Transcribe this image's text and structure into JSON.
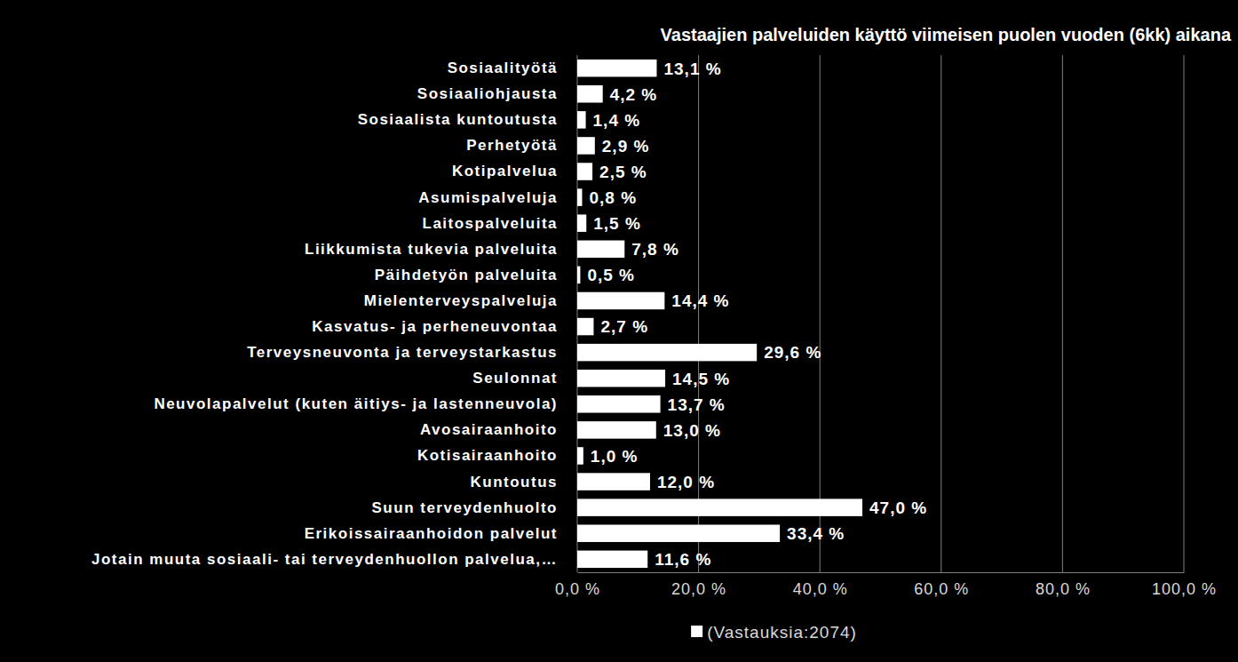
{
  "chart_data": {
    "type": "bar",
    "orientation": "horizontal",
    "title": "Vastaajien palveluiden käyttö viimeisen puolen vuoden (6kk) aikana",
    "categories": [
      "Sosiaalityötä",
      "Sosiaaliohjausta",
      "Sosiaalista kuntoutusta",
      "Perhetyötä",
      "Kotipalvelua",
      "Asumispalveluja",
      "Laitospalveluita",
      "Liikkumista tukevia palveluita",
      "Päihdetyön palveluita",
      "Mielenterveyspalveluja",
      "Kasvatus- ja perheneuvontaa",
      "Terveysneuvonta ja terveystarkastus",
      "Seulonnat",
      "Neuvolapalvelut (kuten äitiys- ja lastenneuvola)",
      "Avosairaanhoito",
      "Kotisairaanhoito",
      "Kuntoutus",
      "Suun terveydenhuolto",
      "Erikoissairaanhoidon palvelut",
      "Jotain muuta sosiaali- tai terveydenhuollon palvelua,…"
    ],
    "series": [
      {
        "name": "(Vastauksia:2074)",
        "color": "#ffffff",
        "values": [
          13.1,
          4.2,
          1.4,
          2.9,
          2.5,
          0.8,
          1.5,
          7.8,
          0.5,
          14.4,
          2.7,
          29.6,
          14.5,
          13.7,
          13.0,
          1.0,
          12.0,
          47.0,
          33.4,
          11.6
        ],
        "value_labels": [
          "13,1 %",
          "4,2 %",
          "1,4 %",
          "2,9 %",
          "2,5 %",
          "0,8 %",
          "1,5 %",
          "7,8 %",
          "0,5 %",
          "14,4 %",
          "2,7 %",
          "29,6 %",
          "14,5 %",
          "13,7 %",
          "13,0 %",
          "1,0 %",
          "12,0 %",
          "47,0 %",
          "33,4 %",
          "11,6 %"
        ]
      }
    ],
    "xlim": [
      0,
      100
    ],
    "xticks": [
      {
        "value": 0,
        "label": "0,0 %"
      },
      {
        "value": 20,
        "label": "20,0 %"
      },
      {
        "value": 40,
        "label": "40,0 %"
      },
      {
        "value": 60,
        "label": "60,0 %"
      },
      {
        "value": 80,
        "label": "80,0 %"
      },
      {
        "value": 100,
        "label": "100,0 %"
      }
    ],
    "grid": true,
    "legend": "bottom",
    "data_labels": true
  }
}
